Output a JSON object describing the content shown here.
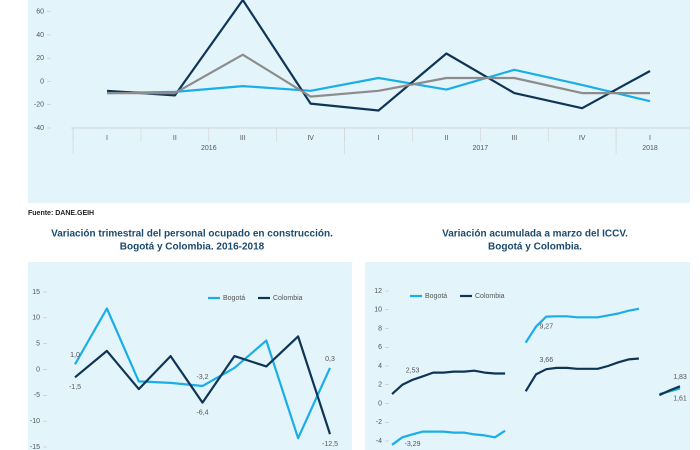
{
  "source": "Fuente: DANE.GEIH",
  "chart_data": [
    {
      "type": "line",
      "categories": [
        "I",
        "II",
        "III",
        "IV",
        "I",
        "II",
        "III",
        "IV",
        "I"
      ],
      "groups": [
        {
          "name": "2016",
          "count": 4
        },
        {
          "name": "2017",
          "count": 4
        },
        {
          "name": "2018",
          "count": 1
        }
      ],
      "ylim": [
        -40,
        70
      ],
      "yticks": [
        -40,
        -20,
        0,
        20,
        40,
        60
      ],
      "grid": false,
      "series": [
        {
          "color": "#1aaee8",
          "values": [
            -10,
            -9,
            -4,
            -8,
            3,
            -7,
            10,
            -3,
            -17
          ]
        },
        {
          "color": "#0f3556",
          "values": [
            -8,
            -12,
            70,
            -19,
            -25,
            24,
            -10,
            -23,
            9
          ]
        },
        {
          "color": "#8c8c8c",
          "values": [
            -10,
            -10,
            23,
            -13,
            -8,
            3,
            3,
            -10,
            -10
          ]
        }
      ]
    },
    {
      "type": "line",
      "title": "Variación trimestral del personal ocupado en construcción.",
      "subtitle": "Bogotá y Colombia. 2016-2018",
      "ylim": [
        -15,
        15
      ],
      "yticks": [
        -15,
        -10,
        -5,
        0,
        5,
        10,
        15
      ],
      "grid": false,
      "legend": "top",
      "series": [
        {
          "name": "Bogotá",
          "color": "#1aaee8",
          "values": [
            1.0,
            11.8,
            -2.3,
            -2.6,
            -3.2,
            0.3,
            5.6,
            -13.3,
            0.3
          ],
          "value_labels": [
            "1,0",
            null,
            null,
            null,
            "-3,2",
            null,
            null,
            null,
            "0,3"
          ]
        },
        {
          "name": "Colombia",
          "color": "#0f3556",
          "values": [
            -1.5,
            3.6,
            -3.8,
            2.6,
            -6.4,
            2.6,
            0.6,
            6.4,
            -12.5
          ],
          "value_labels": [
            "-1,5",
            null,
            null,
            null,
            "-6,4",
            null,
            null,
            null,
            "-12,5"
          ]
        }
      ]
    },
    {
      "type": "line",
      "title": "Variación acumulada a marzo del ICCV.",
      "subtitle": "Bogotá y Colombia.",
      "ylim": [
        -4,
        12
      ],
      "yticks": [
        -4,
        -2,
        0,
        2,
        4,
        6,
        8,
        10,
        12
      ],
      "grid": false,
      "legend": "top",
      "series": [
        {
          "name": "Bogotá",
          "color": "#1aaee8",
          "values": [
            -4.4,
            -3.6,
            -3.29,
            -3.0,
            -3.0,
            -3.0,
            -3.1,
            -3.1,
            -3.3,
            -3.4,
            -3.6,
            -2.9,
            null,
            6.5,
            8.2,
            9.27,
            9.3,
            9.3,
            9.2,
            9.2,
            9.2,
            9.4,
            9.6,
            9.9,
            10.1,
            null,
            1.0,
            1.3,
            1.61
          ],
          "value_labels": [
            null,
            null,
            "-3,29",
            null,
            null,
            null,
            null,
            null,
            null,
            null,
            null,
            null,
            null,
            null,
            null,
            "9,27",
            null,
            null,
            null,
            null,
            null,
            null,
            null,
            null,
            null,
            null,
            null,
            null,
            "1,61"
          ]
        },
        {
          "name": "Colombia",
          "color": "#0f3556",
          "values": [
            1.0,
            2.0,
            2.53,
            2.9,
            3.3,
            3.3,
            3.4,
            3.4,
            3.5,
            3.3,
            3.2,
            3.2,
            null,
            1.3,
            3.1,
            3.66,
            3.8,
            3.8,
            3.7,
            3.7,
            3.7,
            4.0,
            4.4,
            4.7,
            4.8,
            null,
            0.9,
            1.4,
            1.83
          ],
          "value_labels": [
            null,
            null,
            "2,53",
            null,
            null,
            null,
            null,
            null,
            null,
            null,
            null,
            null,
            null,
            null,
            null,
            "3,66",
            null,
            null,
            null,
            null,
            null,
            null,
            null,
            null,
            null,
            null,
            null,
            null,
            "1,83"
          ]
        }
      ]
    }
  ]
}
